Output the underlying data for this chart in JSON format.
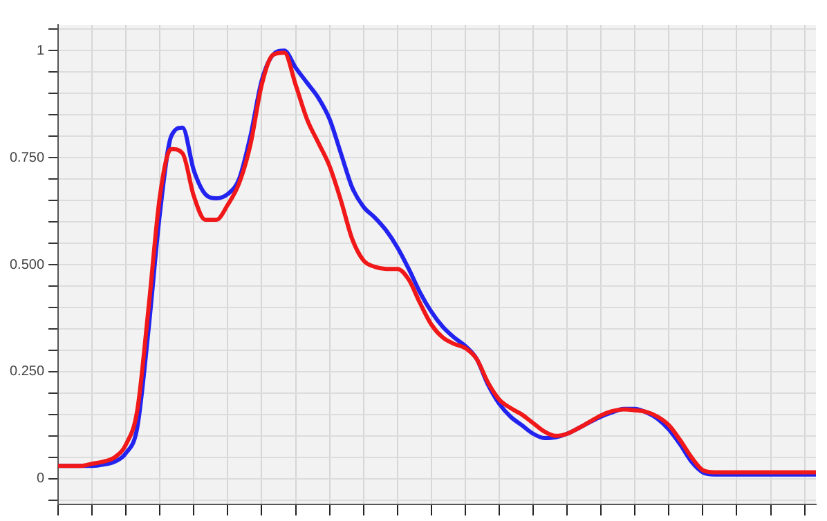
{
  "chart_data": {
    "type": "line",
    "categories": [
      null,
      null,
      null,
      null,
      null,
      null,
      null,
      null,
      null,
      null,
      null,
      null,
      null,
      null,
      null,
      null,
      null,
      null,
      null,
      null,
      null,
      null,
      null,
      null,
      null,
      null,
      null,
      null,
      null,
      null,
      null,
      null,
      null,
      null,
      null,
      null,
      null,
      null,
      null,
      null,
      null,
      null,
      null,
      null,
      null,
      null,
      null,
      null,
      null,
      null,
      null,
      null,
      null,
      null,
      null,
      null,
      null,
      null,
      null,
      null,
      null,
      null,
      null,
      null,
      null,
      null,
      null,
      null
    ],
    "series": [
      {
        "color": "#2323f0",
        "values": [
          0.03,
          0.03,
          0.03,
          0.03,
          0.033,
          0.04,
          0.06,
          0.12,
          0.35,
          0.62,
          0.8,
          0.82,
          0.72,
          0.665,
          0.655,
          0.665,
          0.7,
          0.8,
          0.93,
          0.99,
          1.0,
          0.96,
          0.925,
          0.89,
          0.84,
          0.76,
          0.68,
          0.635,
          0.61,
          0.58,
          0.54,
          0.49,
          0.435,
          0.39,
          0.355,
          0.33,
          0.31,
          0.28,
          0.22,
          0.175,
          0.145,
          0.125,
          0.105,
          0.095,
          0.097,
          0.105,
          0.118,
          0.132,
          0.145,
          0.155,
          0.163,
          0.163,
          0.155,
          0.14,
          0.115,
          0.08,
          0.04,
          0.015,
          0.01,
          0.01,
          0.01,
          0.01,
          0.01,
          0.01,
          0.01,
          0.01,
          0.01,
          0.01
        ]
      },
      {
        "color": "#f01818",
        "values": [
          0.03,
          0.03,
          0.03,
          0.035,
          0.04,
          0.05,
          0.08,
          0.16,
          0.4,
          0.66,
          0.77,
          0.76,
          0.66,
          0.605,
          0.605,
          0.64,
          0.69,
          0.78,
          0.92,
          0.99,
          0.995,
          0.92,
          0.84,
          0.785,
          0.73,
          0.65,
          0.56,
          0.51,
          0.495,
          0.49,
          0.49,
          0.465,
          0.41,
          0.36,
          0.33,
          0.315,
          0.305,
          0.28,
          0.225,
          0.185,
          0.165,
          0.15,
          0.13,
          0.11,
          0.1,
          0.105,
          0.118,
          0.133,
          0.148,
          0.158,
          0.162,
          0.16,
          0.156,
          0.145,
          0.125,
          0.09,
          0.05,
          0.02,
          0.015,
          0.015,
          0.015,
          0.015,
          0.015,
          0.015,
          0.015,
          0.015,
          0.015,
          0.015
        ]
      }
    ],
    "ylim": [
      -0.06,
      1.06
    ],
    "yticks": [
      {
        "value": -0.05,
        "label": null
      },
      0,
      {
        "value": 0.05,
        "label": null
      },
      {
        "value": 0.1,
        "label": null
      },
      {
        "value": 0.15,
        "label": null
      },
      {
        "value": 0.2,
        "label": null
      },
      {
        "value": 0.25,
        "label": "0.250"
      },
      {
        "value": 0.3,
        "label": null
      },
      {
        "value": 0.35,
        "label": null
      },
      {
        "value": 0.4,
        "label": null
      },
      {
        "value": 0.45,
        "label": null
      },
      {
        "value": 0.5,
        "label": "0.500"
      },
      {
        "value": 0.55,
        "label": null
      },
      {
        "value": 0.6,
        "label": null
      },
      {
        "value": 0.65,
        "label": null
      },
      {
        "value": 0.7,
        "label": null
      },
      {
        "value": 0.75,
        "label": "0.750"
      },
      {
        "value": 0.8,
        "label": null
      },
      {
        "value": 0.85,
        "label": null
      },
      {
        "value": 0.9,
        "label": null
      },
      {
        "value": 0.95,
        "label": null
      },
      1,
      {
        "value": 1.05,
        "label": null
      }
    ],
    "grid": true,
    "legend": false,
    "marker": "none",
    "line_style": "solid",
    "tick_labels": "y"
  }
}
